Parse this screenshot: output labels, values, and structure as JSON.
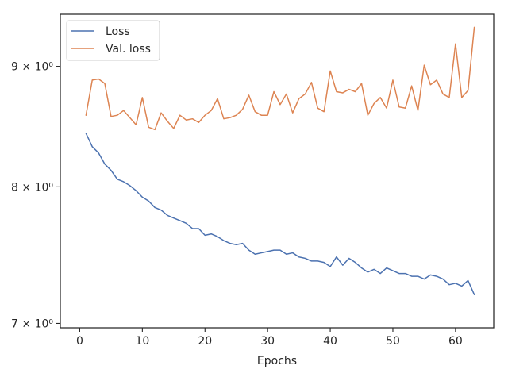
{
  "chart_data": {
    "type": "line",
    "title": "",
    "xlabel": "Epochs",
    "ylabel": "",
    "xlim": [
      -3.1,
      66.1
    ],
    "ylim": [
      6.97,
      9.47
    ],
    "y_scale": "log",
    "grid": false,
    "legend_position": "top-left",
    "x_ticks": [
      0,
      10,
      20,
      30,
      40,
      50,
      60
    ],
    "x_tick_labels": [
      "0",
      "10",
      "20",
      "30",
      "40",
      "50",
      "60"
    ],
    "y_ticks": [
      7,
      8,
      9
    ],
    "y_tick_labels": [
      "7 × 10⁰",
      "8 × 10⁰",
      "9 × 10⁰"
    ],
    "x": [
      1,
      2,
      3,
      4,
      5,
      6,
      7,
      8,
      9,
      10,
      11,
      12,
      13,
      14,
      15,
      16,
      17,
      18,
      19,
      20,
      21,
      22,
      23,
      24,
      25,
      26,
      27,
      28,
      29,
      30,
      31,
      32,
      33,
      34,
      35,
      36,
      37,
      38,
      39,
      40,
      41,
      42,
      43,
      44,
      45,
      46,
      47,
      48,
      49,
      50,
      51,
      52,
      53,
      54,
      55,
      56,
      57,
      58,
      59,
      60,
      61,
      62,
      63
    ],
    "series": [
      {
        "name": "Loss",
        "color": "#4c72b0",
        "values": [
          8.43,
          8.32,
          8.27,
          8.18,
          8.13,
          8.06,
          8.04,
          8.01,
          7.97,
          7.92,
          7.89,
          7.84,
          7.82,
          7.78,
          7.76,
          7.74,
          7.72,
          7.68,
          7.68,
          7.63,
          7.64,
          7.62,
          7.59,
          7.57,
          7.56,
          7.57,
          7.52,
          7.49,
          7.5,
          7.51,
          7.52,
          7.52,
          7.49,
          7.5,
          7.47,
          7.46,
          7.44,
          7.44,
          7.43,
          7.4,
          7.47,
          7.41,
          7.46,
          7.43,
          7.39,
          7.36,
          7.38,
          7.35,
          7.39,
          7.37,
          7.35,
          7.35,
          7.33,
          7.33,
          7.31,
          7.34,
          7.33,
          7.31,
          7.27,
          7.28,
          7.26,
          7.3,
          7.2
        ]
      },
      {
        "name": "Val. loss",
        "color": "#dd8452",
        "values": [
          8.58,
          8.88,
          8.89,
          8.85,
          8.57,
          8.58,
          8.62,
          8.56,
          8.5,
          8.73,
          8.48,
          8.46,
          8.6,
          8.53,
          8.47,
          8.58,
          8.54,
          8.55,
          8.52,
          8.58,
          8.62,
          8.72,
          8.55,
          8.56,
          8.58,
          8.63,
          8.75,
          8.61,
          8.58,
          8.58,
          8.78,
          8.67,
          8.76,
          8.6,
          8.72,
          8.76,
          8.86,
          8.64,
          8.61,
          8.96,
          8.78,
          8.77,
          8.8,
          8.78,
          8.85,
          8.58,
          8.68,
          8.73,
          8.64,
          8.88,
          8.65,
          8.64,
          8.83,
          8.62,
          9.01,
          8.84,
          8.88,
          8.76,
          8.73,
          9.2,
          8.73,
          8.79,
          9.35
        ]
      }
    ]
  }
}
